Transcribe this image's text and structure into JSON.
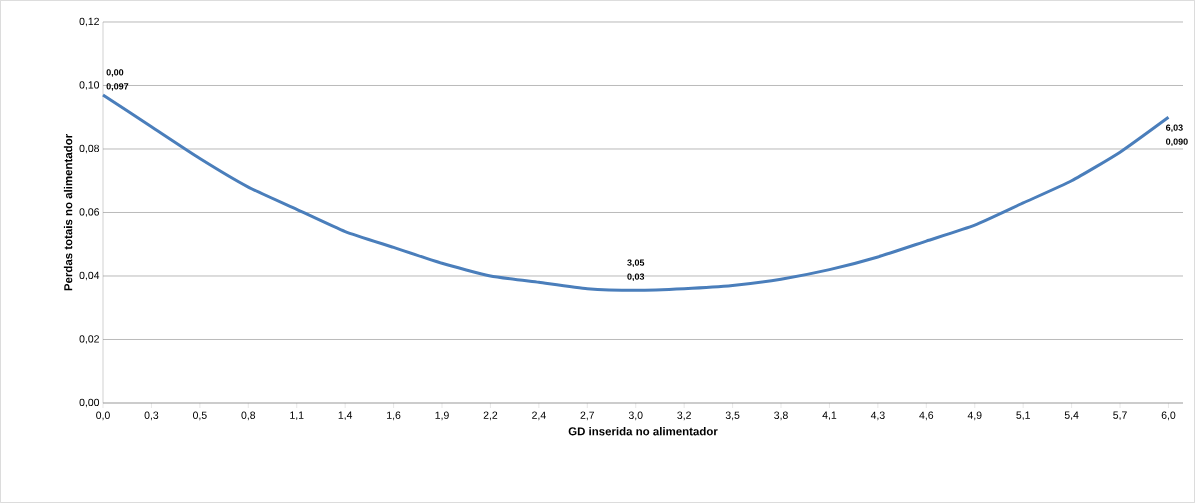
{
  "chart_data": {
    "type": "line",
    "xlabel": "GD inserida no alimentador",
    "ylabel": "Perdas totais no alimentador",
    "categories": [
      "0,0",
      "0,3",
      "0,5",
      "0,8",
      "1,1",
      "1,4",
      "1,6",
      "1,9",
      "2,2",
      "2,4",
      "2,7",
      "3,0",
      "3,2",
      "3,5",
      "3,8",
      "4,1",
      "4,3",
      "4,6",
      "4,9",
      "5,1",
      "5,4",
      "5,7",
      "6,0"
    ],
    "series": [
      {
        "color": "#4a7ebb",
        "values": [
          0.097,
          0.087,
          0.077,
          0.068,
          0.061,
          0.054,
          0.049,
          0.044,
          0.04,
          0.038,
          0.036,
          0.0355,
          0.036,
          0.037,
          0.039,
          0.042,
          0.046,
          0.051,
          0.056,
          0.063,
          0.07,
          0.079,
          0.09
        ]
      }
    ],
    "ylim": [
      0,
      0.12
    ],
    "yticks": [
      {
        "value": 0,
        "label": "0,00"
      },
      {
        "value": 0.02,
        "label": "0,02"
      },
      {
        "value": 0.04,
        "label": "0,04"
      },
      {
        "value": 0.06,
        "label": "0,06"
      },
      {
        "value": 0.08,
        "label": "0,08"
      },
      {
        "value": 0.1,
        "label": "0,10"
      },
      {
        "value": 0.12,
        "label": "0,12"
      }
    ],
    "grid": "y",
    "marker": "none",
    "line_style": "solid",
    "annotations": [
      {
        "text": "0,00",
        "x": "0,0",
        "y": 0.097
      },
      {
        "text": "0,097",
        "x": "0,0",
        "y": 0.097
      },
      {
        "text": "3,05",
        "x": "3,0",
        "y": 0.0355
      },
      {
        "text": "0,03",
        "x": "3,0",
        "y": 0.0355
      },
      {
        "text": "6,03",
        "x": "6,0",
        "y": 0.09
      },
      {
        "text": "0,090",
        "x": "6,0",
        "y": 0.09
      }
    ]
  }
}
